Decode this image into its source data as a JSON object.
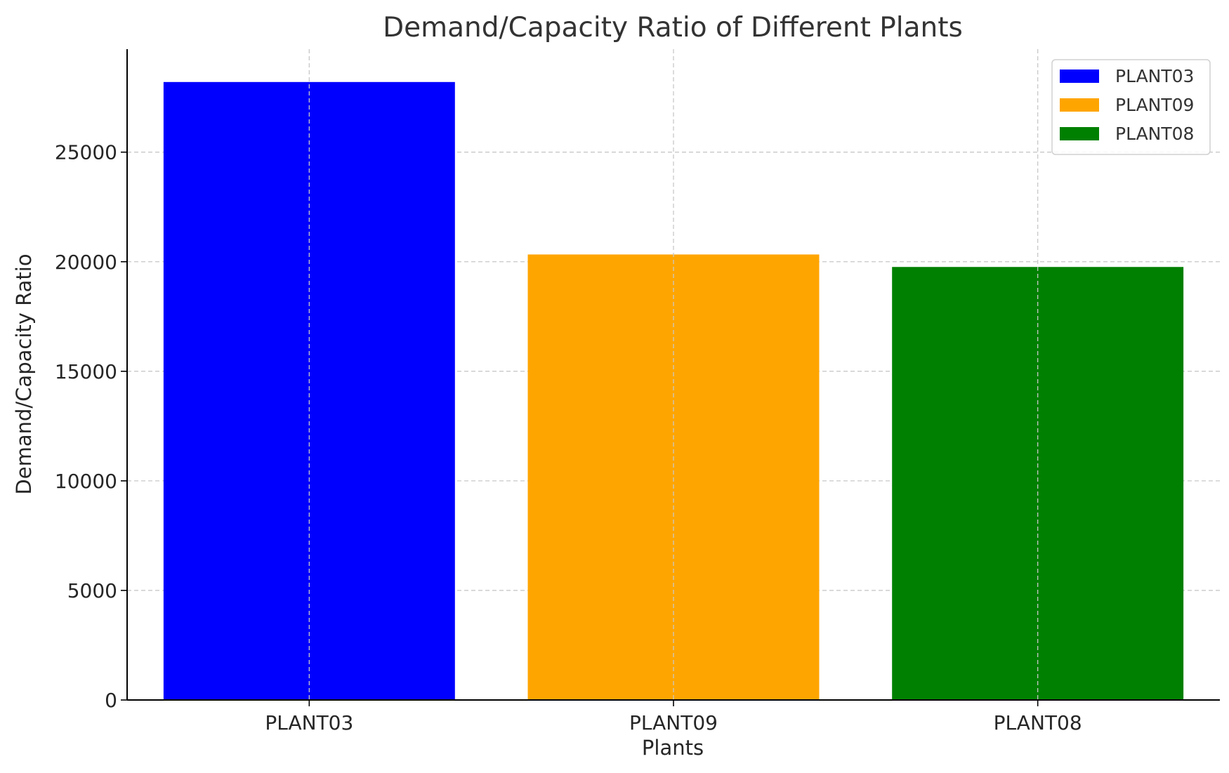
{
  "chart_data": {
    "type": "bar",
    "title": "Demand/Capacity Ratio of Different Plants",
    "xlabel": "Plants",
    "ylabel": "Demand/Capacity Ratio",
    "categories": [
      "PLANT03",
      "PLANT09",
      "PLANT08"
    ],
    "values": [
      28200,
      20330,
      19760
    ],
    "colors": [
      "#0000ff",
      "#ffa500",
      "#008000"
    ],
    "ylim": [
      0,
      29700
    ],
    "yticks": [
      0,
      5000,
      10000,
      15000,
      20000,
      25000
    ],
    "grid": true,
    "legend": {
      "position": "top-right",
      "entries": [
        "PLANT03",
        "PLANT09",
        "PLANT08"
      ]
    }
  }
}
